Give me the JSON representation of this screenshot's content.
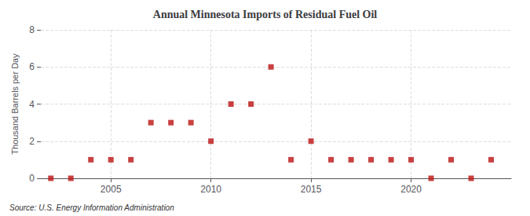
{
  "chart_data": {
    "type": "scatter",
    "title": "Annual Minnesota Imports of Residual Fuel Oil",
    "ylabel": "Thousand Barrels per Day",
    "source": "Source: U.S. Energy Information Administration",
    "x": [
      2002,
      2003,
      2004,
      2005,
      2006,
      2007,
      2008,
      2009,
      2010,
      2011,
      2012,
      2013,
      2014,
      2015,
      2016,
      2017,
      2018,
      2019,
      2020,
      2021,
      2022,
      2023,
      2024
    ],
    "values": [
      0,
      0,
      1,
      1,
      1,
      3,
      3,
      3,
      2,
      4,
      4,
      6,
      1,
      2,
      1,
      1,
      1,
      1,
      1,
      0,
      1,
      0,
      1
    ],
    "color": "#bb1111",
    "marker": "square",
    "xlim": [
      2001.5,
      2025.0
    ],
    "xticks": [
      2005,
      2010,
      2015,
      2020
    ],
    "ylim": [
      0,
      8
    ],
    "yticks": [
      0,
      2,
      4,
      6,
      8
    ],
    "grid": true
  }
}
